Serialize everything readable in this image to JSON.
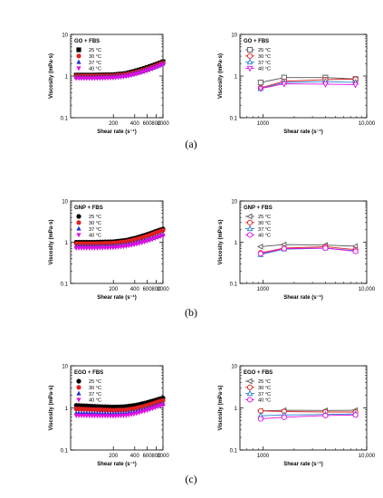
{
  "captions": [
    "(a)",
    "(b)",
    "(c)"
  ],
  "chart_data": [
    {
      "type": "scatter",
      "panel": "a-left",
      "title": "GO + FBS",
      "xlabel": "Shear rate (s⁻¹)",
      "ylabel": "Viscosity (mPa·s)",
      "xscale": "log",
      "yscale": "log",
      "xlim": [
        50,
        1000
      ],
      "ylim": [
        0.1,
        10
      ],
      "x_ticks": [
        "200",
        "400",
        "600",
        "800",
        "1000"
      ],
      "y_ticks": [
        "0.1",
        "1",
        "10"
      ],
      "x": [
        60,
        100,
        200,
        300,
        400,
        500,
        600,
        700,
        800,
        900,
        1000
      ],
      "series": [
        {
          "name": "25 °C",
          "values": [
            1.05,
            1.05,
            1.07,
            1.15,
            1.3,
            1.45,
            1.6,
            1.75,
            1.9,
            2.05,
            2.2
          ]
        },
        {
          "name": "30 °C",
          "values": [
            1.0,
            1.0,
            1.02,
            1.1,
            1.22,
            1.36,
            1.5,
            1.65,
            1.8,
            1.95,
            2.08
          ]
        },
        {
          "name": "37 °C",
          "values": [
            0.93,
            0.93,
            0.96,
            1.03,
            1.15,
            1.28,
            1.42,
            1.56,
            1.7,
            1.84,
            1.98
          ]
        },
        {
          "name": "40 °C",
          "values": [
            0.88,
            0.88,
            0.9,
            0.98,
            1.09,
            1.22,
            1.35,
            1.48,
            1.62,
            1.76,
            1.9
          ]
        }
      ],
      "markers": [
        "square",
        "circle",
        "triangle",
        "triangle-down"
      ],
      "colors": [
        "#000000",
        "#e02020",
        "#2030d0",
        "#e010e0"
      ],
      "legend": "top-left"
    },
    {
      "type": "line",
      "panel": "a-right",
      "title": "GO + FBS",
      "xlabel": "Shear rate (s⁻¹)",
      "ylabel": "Viscosity (mPa·s)",
      "xscale": "log",
      "yscale": "log",
      "xlim": [
        600,
        10000
      ],
      "ylim": [
        0.1,
        10
      ],
      "x_ticks": [
        "1000",
        "10,000"
      ],
      "y_ticks": [
        "0.1",
        "1",
        "10"
      ],
      "x": [
        950,
        1600,
        4000,
        7800
      ],
      "series": [
        {
          "name": "25 °C",
          "values": [
            0.7,
            0.92,
            0.92,
            0.85
          ]
        },
        {
          "name": "30 °C",
          "values": [
            0.52,
            0.75,
            0.82,
            0.84
          ]
        },
        {
          "name": "37 °C",
          "values": [
            0.5,
            0.7,
            0.74,
            0.7
          ]
        },
        {
          "name": "40 °C",
          "values": [
            0.5,
            0.65,
            0.64,
            0.62
          ]
        }
      ],
      "markers": [
        "square-open",
        "circle-open",
        "triangle-open",
        "triangle-down-open"
      ],
      "colors": [
        "#555555",
        "#e02020",
        "#2080d0",
        "#e010e0"
      ],
      "legend": "top-left"
    },
    {
      "type": "scatter",
      "panel": "b-left",
      "title": "GNP + FBS",
      "xlabel": "Shear rate (s⁻¹)",
      "ylabel": "Viscosity (mPa·s)",
      "xscale": "log",
      "yscale": "log",
      "xlim": [
        50,
        1000
      ],
      "ylim": [
        0.1,
        10
      ],
      "x_ticks": [
        "200",
        "400",
        "600",
        "800",
        "1000"
      ],
      "y_ticks": [
        "0.1",
        "1",
        "10"
      ],
      "x": [
        60,
        100,
        200,
        300,
        400,
        500,
        600,
        700,
        800,
        900,
        1000
      ],
      "series": [
        {
          "name": "25 °C",
          "values": [
            1.0,
            1.0,
            1.03,
            1.12,
            1.25,
            1.4,
            1.55,
            1.7,
            1.85,
            1.98,
            2.1
          ]
        },
        {
          "name": "30 °C",
          "values": [
            0.92,
            0.92,
            0.95,
            1.03,
            1.15,
            1.28,
            1.42,
            1.56,
            1.7,
            1.83,
            1.95
          ]
        },
        {
          "name": "37 °C",
          "values": [
            0.78,
            0.78,
            0.8,
            0.86,
            0.95,
            1.05,
            1.15,
            1.25,
            1.35,
            1.45,
            1.55
          ]
        },
        {
          "name": "40 °C",
          "values": [
            0.72,
            0.72,
            0.74,
            0.8,
            0.88,
            0.97,
            1.07,
            1.17,
            1.27,
            1.37,
            1.45
          ]
        }
      ],
      "markers": [
        "circle",
        "circle",
        "triangle",
        "triangle-down"
      ],
      "colors": [
        "#000000",
        "#e02020",
        "#2030d0",
        "#e010e0"
      ],
      "legend": "top-left"
    },
    {
      "type": "line",
      "panel": "b-right",
      "title": "GNP + FBS",
      "xlabel": "Shear rate (s⁻¹)",
      "ylabel": "Viscosity (mPa·s)",
      "xscale": "log",
      "yscale": "log",
      "xlim": [
        600,
        10000
      ],
      "ylim": [
        0.1,
        10
      ],
      "x_ticks": [
        "1000",
        "10,000"
      ],
      "y_ticks": [
        "0.1",
        "1",
        "10"
      ],
      "x": [
        950,
        1600,
        4000,
        7800
      ],
      "series": [
        {
          "name": "25 °C",
          "values": [
            0.78,
            0.88,
            0.85,
            0.8
          ]
        },
        {
          "name": "30 °C",
          "values": [
            0.55,
            0.72,
            0.78,
            0.66
          ]
        },
        {
          "name": "37 °C",
          "values": [
            0.5,
            0.68,
            0.72,
            0.62
          ]
        },
        {
          "name": "40 °C",
          "values": [
            0.53,
            0.7,
            0.72,
            0.6
          ]
        }
      ],
      "markers": [
        "triangle-left-open",
        "circle-open",
        "triangle-open",
        "circle-open"
      ],
      "colors": [
        "#555555",
        "#e02020",
        "#2080d0",
        "#e010e0"
      ],
      "legend": "top-left"
    },
    {
      "type": "scatter",
      "panel": "c-left",
      "title": "EGO + FBS",
      "xlabel": "Shear rate (s⁻¹)",
      "ylabel": "Viscosity (mPa·s)",
      "xscale": "log",
      "yscale": "log",
      "xlim": [
        50,
        1000
      ],
      "ylim": [
        0.1,
        10
      ],
      "x_ticks": [
        "200",
        "400",
        "600",
        "800",
        "1000"
      ],
      "y_ticks": [
        "0.1",
        "1",
        "10"
      ],
      "x": [
        60,
        100,
        200,
        300,
        400,
        500,
        600,
        700,
        800,
        900,
        1000
      ],
      "series": [
        {
          "name": "25 °C",
          "values": [
            1.15,
            1.1,
            1.05,
            1.08,
            1.15,
            1.25,
            1.35,
            1.45,
            1.55,
            1.65,
            1.72
          ]
        },
        {
          "name": "30 °C",
          "values": [
            0.95,
            0.92,
            0.88,
            0.9,
            0.97,
            1.06,
            1.15,
            1.25,
            1.35,
            1.45,
            1.5
          ]
        },
        {
          "name": "37 °C",
          "values": [
            0.75,
            0.74,
            0.72,
            0.74,
            0.8,
            0.88,
            0.96,
            1.04,
            1.12,
            1.2,
            1.25
          ]
        },
        {
          "name": "40 °C",
          "values": [
            0.66,
            0.65,
            0.64,
            0.66,
            0.72,
            0.8,
            0.88,
            0.96,
            1.04,
            1.12,
            1.17
          ]
        }
      ],
      "markers": [
        "circle",
        "circle",
        "triangle",
        "triangle-down"
      ],
      "colors": [
        "#000000",
        "#e02020",
        "#2030d0",
        "#e010e0"
      ],
      "legend": "top-left"
    },
    {
      "type": "line",
      "panel": "c-right",
      "title": "EGO + FBS",
      "xlabel": "Shear rate (s⁻¹)",
      "ylabel": "Viscosity (mPa·s)",
      "xscale": "log",
      "yscale": "log",
      "xlim": [
        600,
        10000
      ],
      "ylim": [
        0.1,
        10
      ],
      "x_ticks": [
        "1000",
        "10,000"
      ],
      "y_ticks": [
        "0.1",
        "1",
        "10"
      ],
      "x": [
        950,
        1600,
        4000,
        7800
      ],
      "series": [
        {
          "name": "25 °C",
          "values": [
            0.85,
            0.88,
            0.87,
            0.88
          ]
        },
        {
          "name": "30 °C",
          "values": [
            0.85,
            0.82,
            0.8,
            0.8
          ]
        },
        {
          "name": "37 °C",
          "values": [
            0.65,
            0.68,
            0.7,
            0.72
          ]
        },
        {
          "name": "40 °C",
          "values": [
            0.55,
            0.6,
            0.66,
            0.68
          ]
        }
      ],
      "markers": [
        "triangle-left-open",
        "circle-open",
        "triangle-open",
        "circle-open"
      ],
      "colors": [
        "#555555",
        "#e02020",
        "#2080d0",
        "#e010e0"
      ],
      "legend": "top-left"
    }
  ]
}
